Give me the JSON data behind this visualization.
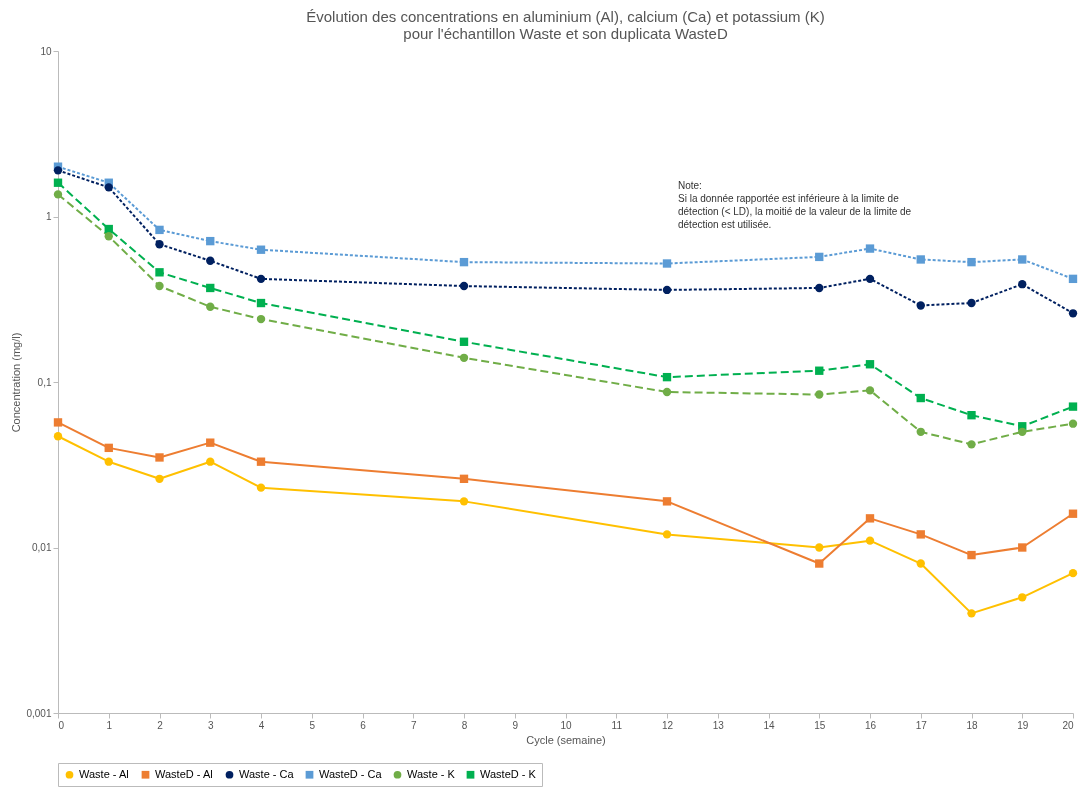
{
  "chart_data": {
    "type": "line",
    "title": "Évolution des concentrations en aluminium (Al), calcium (Ca) et potassium (K)\npour l'échantillon Waste et son duplicata WasteD",
    "xlabel": "Cycle (semaine)",
    "ylabel": "Concentration (mg/l)",
    "x": [
      0,
      1,
      2,
      3,
      4,
      8,
      12,
      15,
      16,
      17,
      18,
      19,
      20
    ],
    "series": [
      {
        "name": "Waste - Al",
        "color": "#ffc000",
        "marker": "circle",
        "line_style": "solid",
        "values": [
          0.047,
          0.033,
          0.026,
          0.033,
          0.023,
          0.019,
          0.012,
          0.01,
          0.011,
          0.008,
          0.004,
          0.005,
          0.007
        ]
      },
      {
        "name": "WasteD - Al",
        "color": "#ed7d31",
        "marker": "square",
        "line_style": "solid",
        "values": [
          0.057,
          0.04,
          0.035,
          0.043,
          0.033,
          0.026,
          0.019,
          0.008,
          0.015,
          0.012,
          0.009,
          0.01,
          0.016
        ]
      },
      {
        "name": "Waste - Ca",
        "color": "#002060",
        "marker": "circle",
        "line_style": "dotted",
        "values": [
          1.9,
          1.5,
          0.68,
          0.54,
          0.42,
          0.38,
          0.36,
          0.37,
          0.42,
          0.29,
          0.3,
          0.39,
          0.26
        ]
      },
      {
        "name": "WasteD - Ca",
        "color": "#5b9bd5",
        "marker": "square",
        "line_style": "dotted",
        "values": [
          2.0,
          1.6,
          0.83,
          0.71,
          0.63,
          0.53,
          0.52,
          0.57,
          0.64,
          0.55,
          0.53,
          0.55,
          0.42
        ]
      },
      {
        "name": "Waste - K",
        "color": "#70ad47",
        "marker": "circle",
        "line_style": "dashed",
        "values": [
          1.36,
          0.76,
          0.38,
          0.285,
          0.24,
          0.14,
          0.087,
          0.084,
          0.089,
          0.05,
          0.042,
          0.05,
          0.056
        ]
      },
      {
        "name": "WasteD - K",
        "color": "#00b050",
        "marker": "square",
        "line_style": "dashed",
        "values": [
          1.6,
          0.84,
          0.46,
          0.37,
          0.3,
          0.175,
          0.107,
          0.117,
          0.128,
          0.08,
          0.063,
          0.054,
          0.071
        ]
      }
    ],
    "xlim": [
      0,
      20
    ],
    "xticks": [
      0,
      1,
      2,
      3,
      4,
      5,
      6,
      7,
      8,
      9,
      10,
      11,
      12,
      13,
      14,
      15,
      16,
      17,
      18,
      19,
      20
    ],
    "ylim": [
      0.001,
      10
    ],
    "yticks": [
      {
        "value": 0.001,
        "label": "0,001"
      },
      {
        "value": 0.01,
        "label": "0,01"
      },
      {
        "value": 0.1,
        "label": "0,1"
      },
      {
        "value": 1,
        "label": "1"
      },
      {
        "value": 10,
        "label": "10"
      }
    ],
    "log": "y",
    "grid": false,
    "legend": "bottom",
    "annotations": [
      "Note:\nSi la donnée rapportée est inférieure à la limite de\ndétection (< LD), la moitié de la valeur de la limite de\ndétection est utilisée."
    ]
  }
}
